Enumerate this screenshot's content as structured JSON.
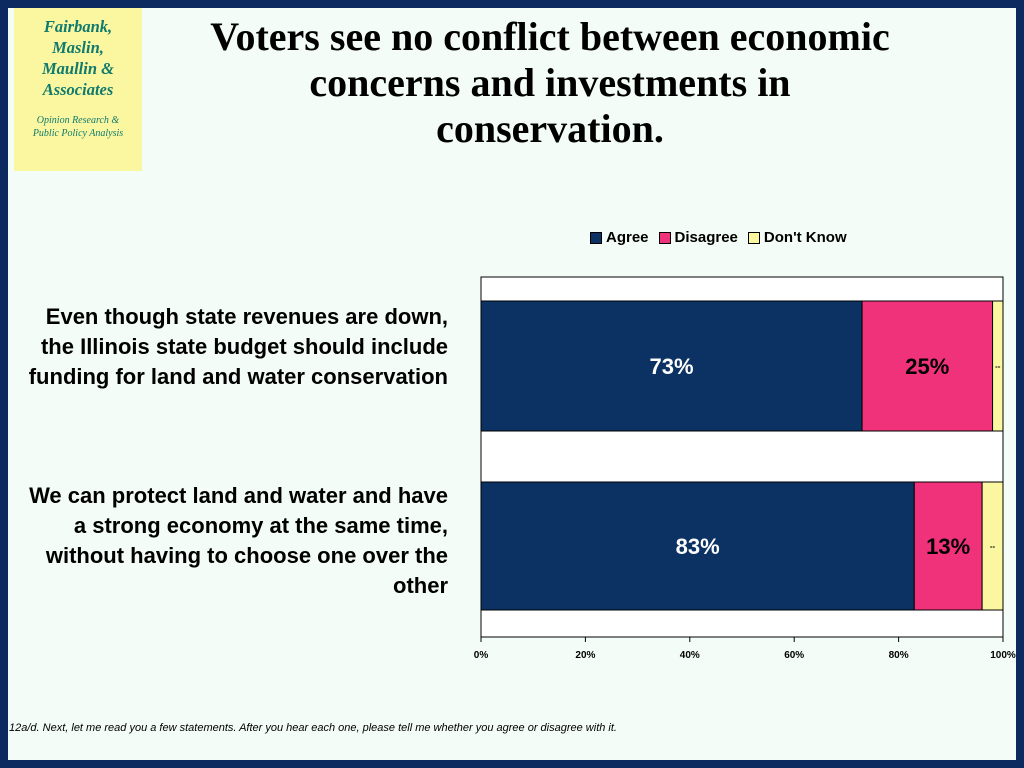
{
  "logo": {
    "name": "Fairbank,\nMaslin,\nMaullin &\nAssociates",
    "tagline": "Opinion Research &\nPublic Policy Analysis"
  },
  "title": "Voters see no conflict between economic concerns and investments in conservation.",
  "footnote": "12a/d. Next, let me read you a few statements.  After you hear each one, please tell me whether you agree or disagree with it.",
  "colors": {
    "agree": "#0c3263",
    "disagree": "#f0327a",
    "dont_know": "#fbf7a0"
  },
  "chart_data": {
    "type": "bar",
    "orientation": "horizontal",
    "stacked": true,
    "categories": [
      "Even though state revenues are down, the Illinois state budget should include funding for land and water conservation",
      "We can protect land and water and have a strong economy at the same time, without having to choose one over the other"
    ],
    "series": [
      {
        "name": "Agree",
        "values": [
          73,
          83
        ],
        "labels": [
          "73%",
          "83%"
        ]
      },
      {
        "name": "Disagree",
        "values": [
          25,
          13
        ],
        "labels": [
          "25%",
          "13%"
        ]
      },
      {
        "name": "Don't Know",
        "values": [
          2,
          4
        ],
        "labels": [
          "--",
          "--"
        ]
      }
    ],
    "xlim": [
      0,
      100
    ],
    "xticks": [
      "0%",
      "20%",
      "40%",
      "60%",
      "80%",
      "100%"
    ],
    "legend": "top"
  }
}
